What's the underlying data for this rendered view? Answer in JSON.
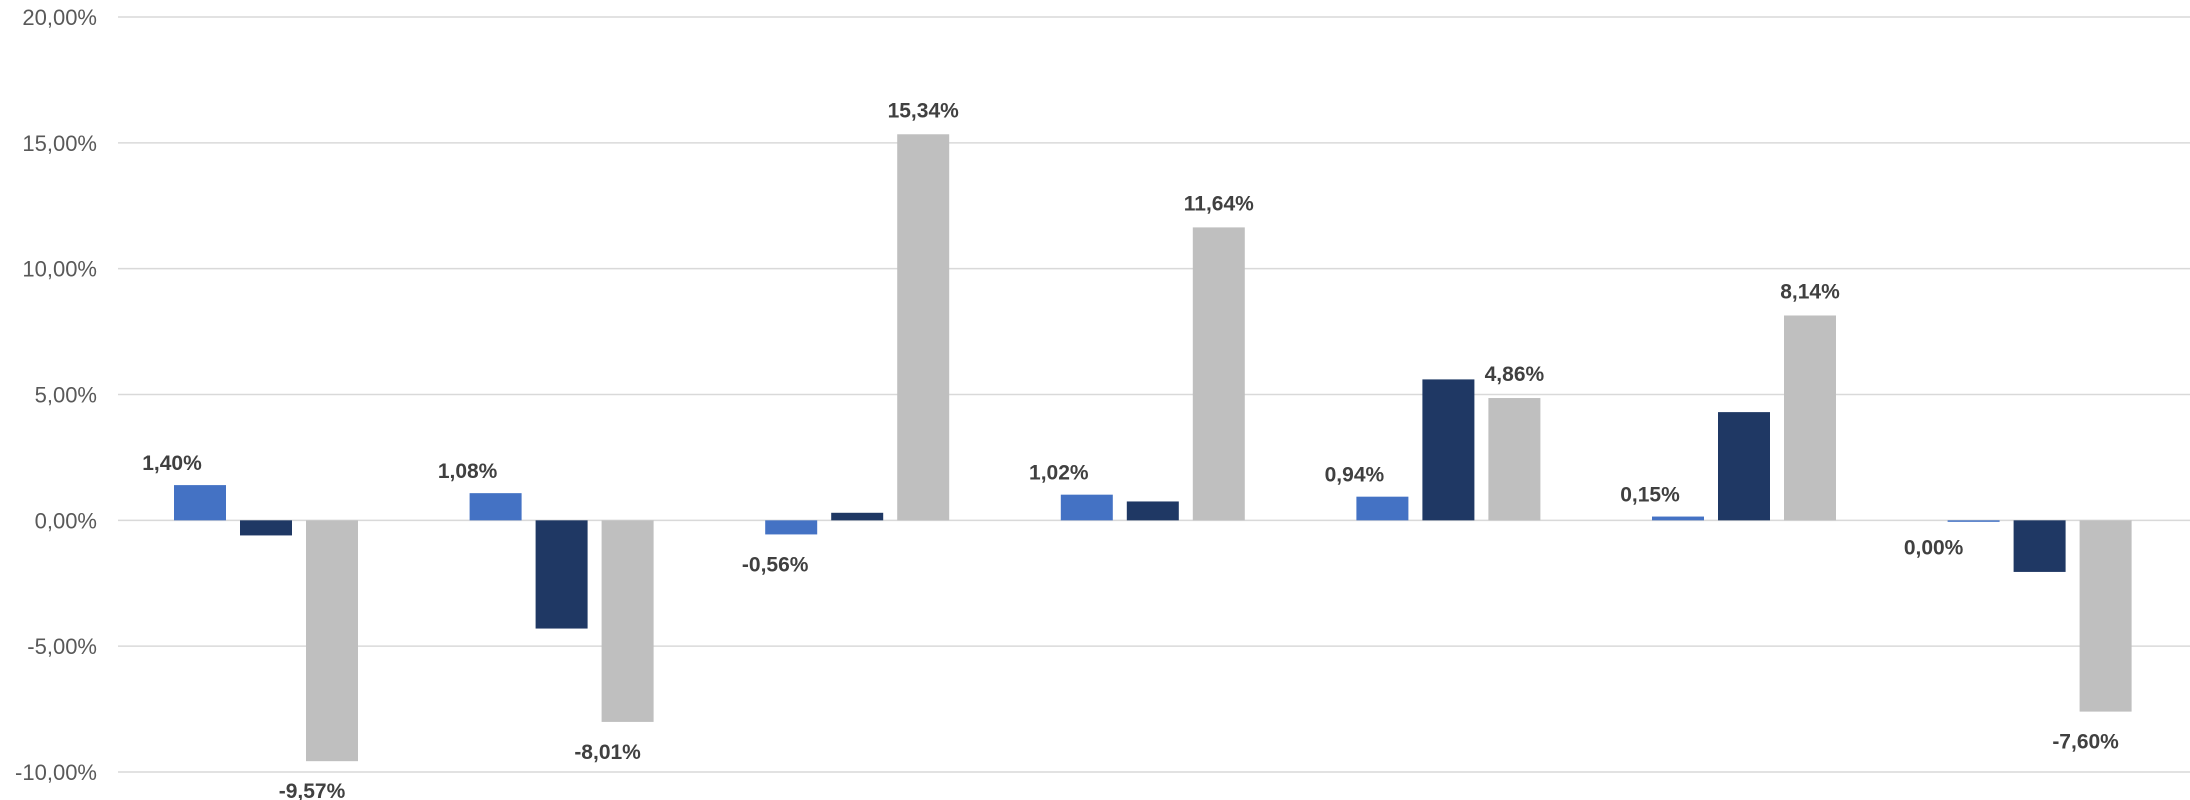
{
  "chart_data": {
    "type": "bar",
    "title": "",
    "xlabel": "",
    "ylabel": "",
    "ylim": [
      -10,
      20
    ],
    "yticks": [
      20,
      15,
      10,
      5,
      0,
      -5,
      -10
    ],
    "ytick_labels": [
      "20,00%",
      "15,00%",
      "10,00%",
      "5,00%",
      "0,00%",
      "-5,00%",
      "-10,00%"
    ],
    "grid": true,
    "legend": "none",
    "categories": [
      "",
      "",
      "",
      "",
      "",
      "",
      ""
    ],
    "series": [
      {
        "color": "#4472c4",
        "values": [
          1.4,
          1.08,
          -0.56,
          1.02,
          0.94,
          0.15,
          0.0
        ],
        "labels": [
          "1,40%",
          "1,08%",
          "-0,56%",
          "1,02%",
          "0,94%",
          "0,15%",
          "0,00%"
        ]
      },
      {
        "color": "#1f3864",
        "values": [
          -0.6,
          -4.3,
          0.3,
          0.75,
          5.6,
          4.3,
          -2.05
        ],
        "labels": [
          "",
          "",
          "",
          "",
          "",
          "",
          ""
        ]
      },
      {
        "color": "#bfbfbf",
        "values": [
          -9.57,
          -8.01,
          15.34,
          11.64,
          4.86,
          8.14,
          -7.6
        ],
        "labels": [
          "-9,57%",
          "-8,01%",
          "15,34%",
          "11,64%",
          "4,86%",
          "8,14%",
          "-7,60%"
        ]
      }
    ]
  }
}
